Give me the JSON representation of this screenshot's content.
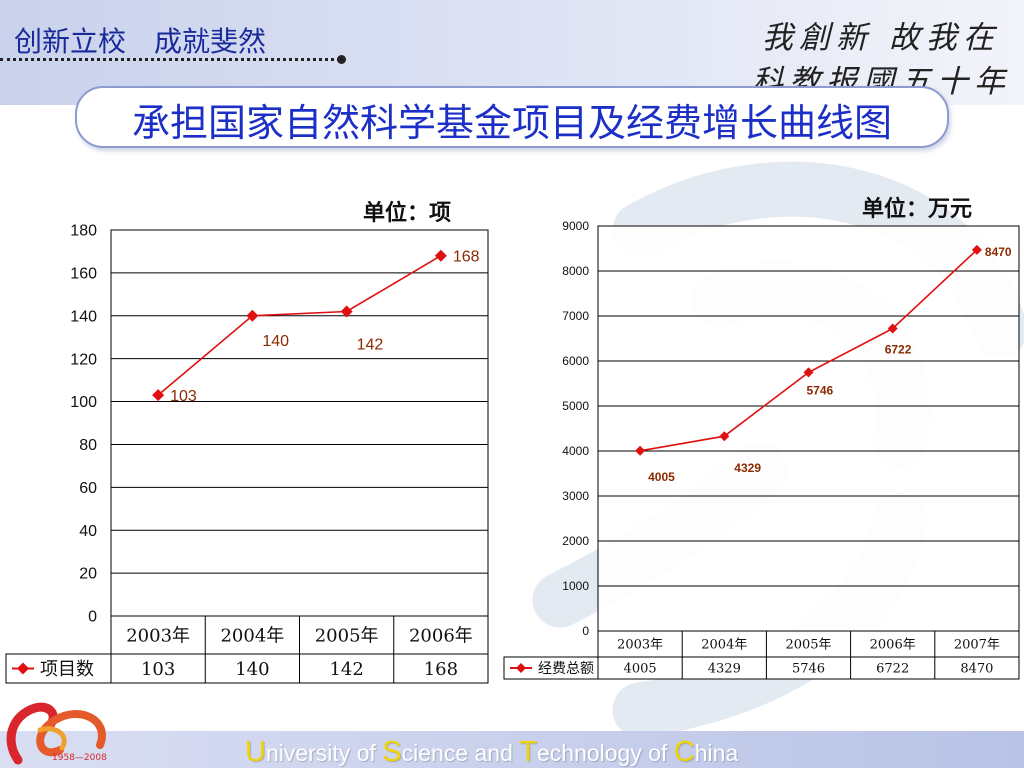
{
  "header": {
    "motto": "创新立校　成就斐然",
    "calligraphy_line1": "我創新 故我在",
    "calligraphy_line2": "科教报國五十年",
    "title": "承担国家自然科学基金项目及经费增长曲线图"
  },
  "footer": {
    "u": "U",
    "u_rest": "niversity of ",
    "s": "S",
    "s_rest": "cience and ",
    "t": "T",
    "t_rest": "echnology of ",
    "c": "C",
    "c_rest": "hina",
    "logo_years": "1958—2008"
  },
  "colors": {
    "series": "#e01010",
    "label": "#8b2a00",
    "title": "#1c30c8",
    "grid": "#000000"
  },
  "chart_data": [
    {
      "type": "line",
      "unit_label": "单位：项",
      "categories": [
        "2003年",
        "2004年",
        "2005年",
        "2006年"
      ],
      "series": [
        {
          "name": "项目数",
          "values": [
            103,
            140,
            142,
            168
          ]
        }
      ],
      "ylim": [
        0,
        180
      ],
      "yticks": [
        0,
        20,
        40,
        60,
        80,
        100,
        120,
        140,
        160,
        180
      ],
      "grid": true,
      "legend": "data-table"
    },
    {
      "type": "line",
      "unit_label": "单位：万元",
      "categories": [
        "2003年",
        "2004年",
        "2005年",
        "2006年",
        "2007年"
      ],
      "series": [
        {
          "name": "经费总额",
          "values": [
            4005,
            4329,
            5746,
            6722,
            8470
          ]
        }
      ],
      "ylim": [
        0,
        9000
      ],
      "yticks": [
        0,
        1000,
        2000,
        3000,
        4000,
        5000,
        6000,
        7000,
        8000,
        9000
      ],
      "grid": true,
      "legend": "data-table"
    }
  ]
}
